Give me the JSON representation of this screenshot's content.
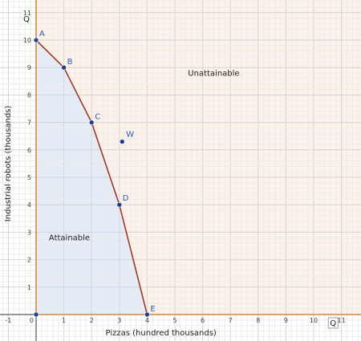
{
  "chart_data": {
    "type": "line",
    "xlabel": "Pizzas (hundred thousands)",
    "ylabel": "Industrial robots (thousands)",
    "xlim": [
      -1.2,
      11.8
    ],
    "ylim": [
      -0.9,
      11.4
    ],
    "x_ticks": [
      -1,
      0,
      1,
      2,
      3,
      4,
      5,
      6,
      7,
      8,
      9,
      10,
      11
    ],
    "y_ticks": [
      0,
      1,
      2,
      3,
      4,
      5,
      6,
      7,
      8,
      9,
      10,
      11
    ],
    "grid": true,
    "series": [
      {
        "points": [
          {
            "label": "A",
            "x": 0,
            "y": 10
          },
          {
            "label": "B",
            "x": 1,
            "y": 9
          },
          {
            "label": "C",
            "x": 2,
            "y": 7
          },
          {
            "label": "D",
            "x": 3,
            "y": 4
          },
          {
            "label": "E",
            "x": 4,
            "y": 0
          }
        ]
      }
    ],
    "extra_points": [
      {
        "label": "W",
        "x": 3.1,
        "y": 6.3
      },
      {
        "label": "",
        "x": 0,
        "y": 0
      }
    ],
    "regions": [
      {
        "label": "Attainable",
        "x": 1.2,
        "y": 2.7
      },
      {
        "label": "Unattainable",
        "x": 6.4,
        "y": 8.7
      }
    ],
    "axis_markers": {
      "x_marker": "Q",
      "y_marker": "Q"
    },
    "colors": {
      "frontier": "#a0392a",
      "point": "#1f3f8f",
      "point_label": "#2a5db0",
      "attainable_fill": "#e3ecf8",
      "unattainable_fill": "#fdf1e8",
      "axis_highlight": "#d4883a"
    }
  }
}
